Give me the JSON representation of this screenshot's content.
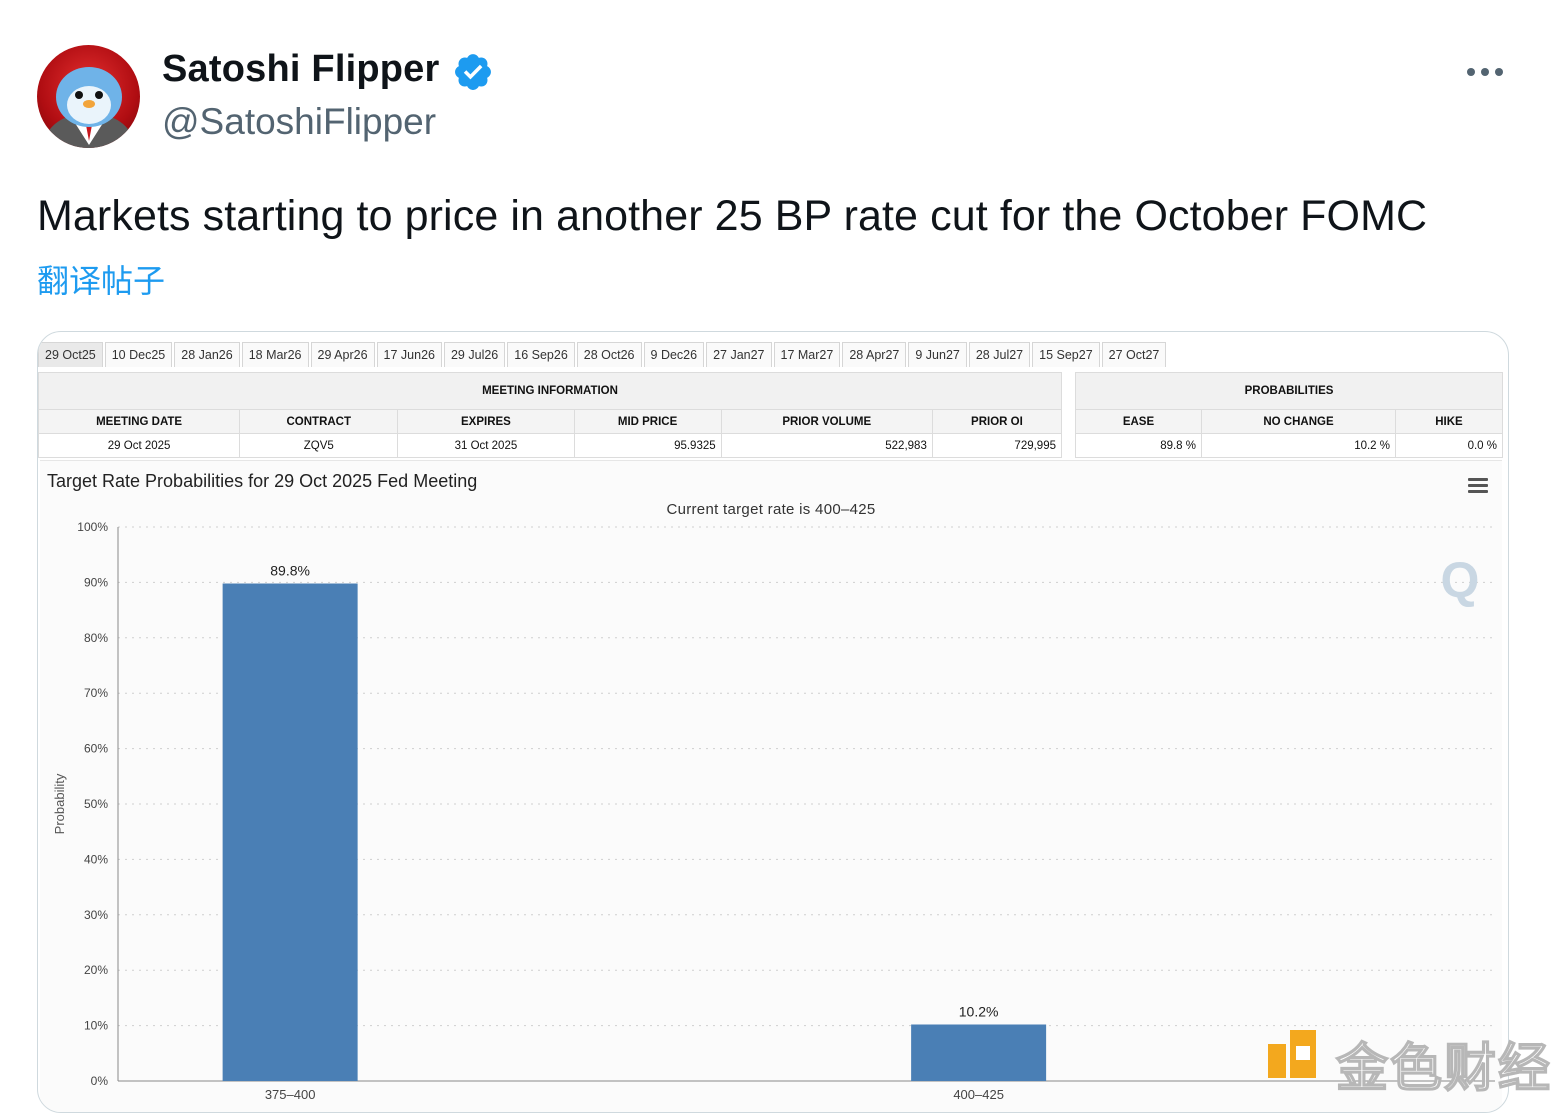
{
  "tweet": {
    "display_name": "Satoshi Flipper",
    "handle": "@SatoshiFlipper",
    "verified": true,
    "text": "Markets starting to price in another 25 BP rate cut for the October FOMC",
    "translate_label": "翻译帖子",
    "more_icon": "more-horizontal-icon"
  },
  "media": {
    "tabs": [
      "29 Oct25",
      "10 Dec25",
      "28 Jan26",
      "18 Mar26",
      "29 Apr26",
      "17 Jun26",
      "29 Jul26",
      "16 Sep26",
      "28 Oct26",
      "9 Dec26",
      "27 Jan27",
      "17 Mar27",
      "28 Apr27",
      "9 Jun27",
      "28 Jul27",
      "15 Sep27",
      "27 Oct27"
    ],
    "meeting_info": {
      "header": "MEETING INFORMATION",
      "columns": [
        "MEETING DATE",
        "CONTRACT",
        "EXPIRES",
        "MID PRICE",
        "PRIOR VOLUME",
        "PRIOR OI"
      ],
      "row": [
        "29 Oct 2025",
        "ZQV5",
        "31 Oct 2025",
        "95.9325",
        "522,983",
        "729,995"
      ]
    },
    "probabilities": {
      "header": "PROBABILITIES",
      "columns": [
        "EASE",
        "NO CHANGE",
        "HIKE"
      ],
      "row": [
        "89.8 %",
        "10.2 %",
        "0.0 %"
      ]
    },
    "watermark_text": "金色财经"
  },
  "chart_data": {
    "type": "bar",
    "title": "Target Rate Probabilities for 29 Oct 2025 Fed Meeting",
    "subtitle": "Current target rate is 400–425",
    "ylabel": "Probability",
    "ylim": [
      0,
      100
    ],
    "yticks": [
      "0%",
      "10%",
      "20%",
      "30%",
      "40%",
      "50%",
      "60%",
      "70%",
      "80%",
      "90%",
      "100%"
    ],
    "categories": [
      "375–400",
      "400–425"
    ],
    "values": [
      89.8,
      10.2
    ],
    "data_labels": [
      "89.8%",
      "10.2%"
    ],
    "bar_color": "#4a7fb5",
    "grid": true
  }
}
